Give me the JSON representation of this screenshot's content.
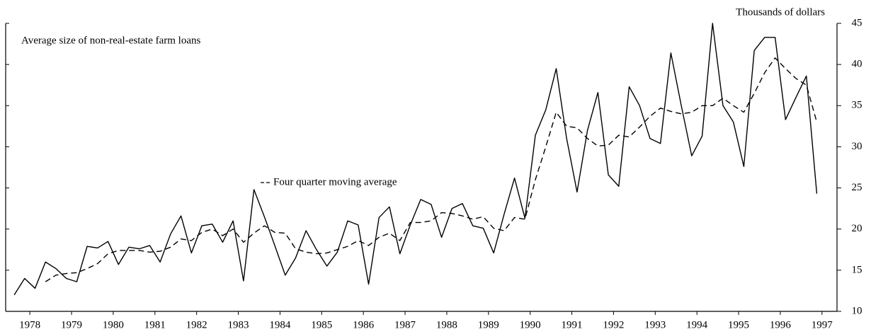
{
  "chart_data": {
    "type": "line",
    "title": "Average size of non-real-estate farm loans",
    "y_label": "Thousands of dollars",
    "x": [
      1978.125,
      1978.375,
      1978.625,
      1978.875,
      1979.125,
      1979.375,
      1979.625,
      1979.875,
      1980.125,
      1980.375,
      1980.625,
      1980.875,
      1981.125,
      1981.375,
      1981.625,
      1981.875,
      1982.125,
      1982.375,
      1982.625,
      1982.875,
      1983.125,
      1983.375,
      1983.625,
      1983.875,
      1984.125,
      1984.375,
      1984.625,
      1984.875,
      1985.125,
      1985.375,
      1985.625,
      1985.875,
      1986.125,
      1986.375,
      1986.625,
      1986.875,
      1987.125,
      1987.375,
      1987.625,
      1987.875,
      1988.125,
      1988.375,
      1988.625,
      1988.875,
      1989.125,
      1989.375,
      1989.625,
      1989.875,
      1990.125,
      1990.375,
      1990.625,
      1990.875,
      1991.125,
      1991.375,
      1991.625,
      1991.875,
      1992.125,
      1992.375,
      1992.625,
      1992.875,
      1993.125,
      1993.375,
      1993.625,
      1993.875,
      1994.125,
      1994.375,
      1994.625,
      1994.875,
      1995.125,
      1995.375,
      1995.625,
      1995.875,
      1996.125,
      1996.375,
      1996.625,
      1996.875,
      1997.125,
      1997.375
    ],
    "series": [
      {
        "color": "#000000",
        "dash": false,
        "values": [
          12.0,
          14.0,
          12.8,
          16.0,
          15.2,
          14.0,
          13.6,
          17.9,
          17.7,
          18.5,
          15.7,
          17.8,
          17.6,
          18.0,
          16.0,
          19.4,
          21.6,
          17.1,
          20.4,
          20.6,
          18.4,
          21.0,
          13.7,
          24.8,
          21.5,
          18.0,
          14.4,
          16.5,
          19.8,
          17.5,
          15.5,
          17.2,
          21.0,
          20.5,
          13.3,
          21.4,
          22.7,
          17.0,
          20.5,
          23.6,
          23.0,
          19.0,
          22.5,
          23.1,
          20.4,
          20.1,
          17.1,
          21.8,
          26.2,
          21.3,
          31.4,
          34.5,
          39.5,
          31.0,
          24.5,
          32.0,
          36.6,
          26.6,
          25.2,
          37.3,
          35.0,
          31.0,
          30.4,
          41.4,
          35.0,
          28.9,
          31.3,
          45.0,
          35.0,
          33.0,
          27.6,
          41.7,
          43.3,
          43.3,
          33.3,
          36.0,
          38.6,
          24.3
        ]
      },
      {
        "name": "Four quarter moving average",
        "color": "#000000",
        "dash": true,
        "values": [
          null,
          null,
          null,
          13.6,
          14.4,
          14.6,
          14.7,
          15.2,
          15.8,
          17.0,
          17.4,
          17.4,
          17.4,
          17.2,
          17.3,
          17.8,
          18.8,
          18.6,
          19.6,
          20.0,
          19.2,
          20.0,
          18.4,
          19.5,
          20.4,
          19.6,
          19.5,
          17.6,
          17.2,
          17.0,
          17.1,
          17.5,
          17.9,
          18.6,
          18.0,
          19.0,
          19.5,
          18.6,
          20.8,
          20.8,
          21.0,
          22.0,
          21.9,
          21.6,
          21.2,
          21.5,
          20.1,
          19.8,
          21.4,
          21.2,
          26.0,
          30.0,
          34.2,
          32.5,
          32.3,
          31.0,
          30.1,
          30.2,
          31.4,
          31.2,
          32.4,
          33.7,
          34.7,
          34.3,
          34.0,
          34.2,
          35.0,
          35.0,
          35.9,
          35.0,
          34.2,
          36.5,
          39.0,
          40.8,
          39.5,
          38.3,
          37.5,
          33.0
        ]
      }
    ],
    "xlim": [
      1977.92,
      1997.86
    ],
    "xticks": [
      {
        "value": 1978.5,
        "label": "1978"
      },
      {
        "value": 1979.5,
        "label": "1979"
      },
      {
        "value": 1980.5,
        "label": "1980"
      },
      {
        "value": 1981.5,
        "label": "1981"
      },
      {
        "value": 1982.5,
        "label": "1982"
      },
      {
        "value": 1983.5,
        "label": "1983"
      },
      {
        "value": 1984.5,
        "label": "1984"
      },
      {
        "value": 1985.5,
        "label": "1985"
      },
      {
        "value": 1986.5,
        "label": "1986"
      },
      {
        "value": 1987.5,
        "label": "1987"
      },
      {
        "value": 1988.5,
        "label": "1988"
      },
      {
        "value": 1989.5,
        "label": "1989"
      },
      {
        "value": 1990.5,
        "label": "1990"
      },
      {
        "value": 1991.5,
        "label": "1991"
      },
      {
        "value": 1992.5,
        "label": "1992"
      },
      {
        "value": 1993.5,
        "label": "1993"
      },
      {
        "value": 1994.5,
        "label": "1994"
      },
      {
        "value": 1995.5,
        "label": "1995"
      },
      {
        "value": 1996.5,
        "label": "1996"
      },
      {
        "value": 1997.5,
        "label": "1997"
      }
    ],
    "ylim": [
      10,
      45
    ],
    "yticks": [
      10,
      15,
      20,
      25,
      30,
      35,
      40,
      45
    ],
    "grid": false
  }
}
